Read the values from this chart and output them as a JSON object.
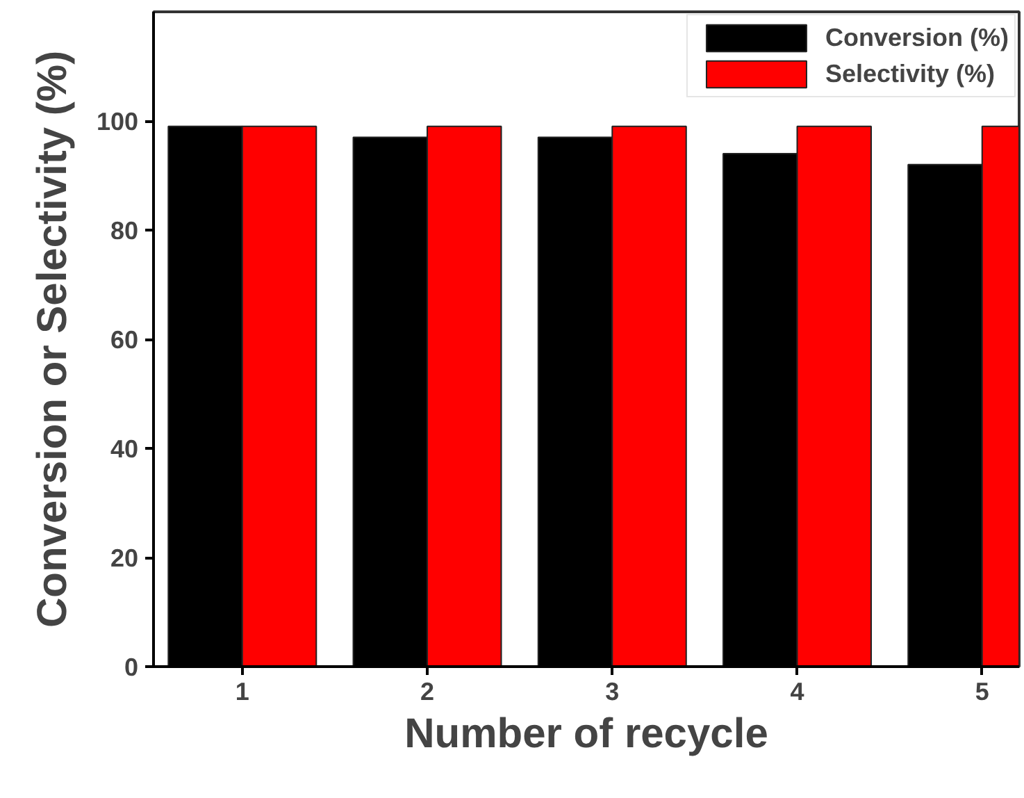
{
  "chart_data": {
    "type": "bar",
    "xlabel": "Number of recycle",
    "ylabel": "Conversion or Selectivity (%)",
    "x": [
      1,
      2,
      3,
      4,
      5
    ],
    "xlim": [
      0.52,
      5.2
    ],
    "xticks": [
      1,
      2,
      3,
      4,
      5
    ],
    "ylim": [
      0,
      120
    ],
    "yticks": [
      0,
      20,
      40,
      60,
      80,
      100
    ],
    "series": [
      {
        "name": "Conversion (%)",
        "color": "#000000",
        "values": [
          99,
          97,
          97,
          94,
          92
        ]
      },
      {
        "name": "Selectivity (%)",
        "color": "#ff0000",
        "values": [
          99,
          99,
          99,
          99,
          99
        ]
      }
    ],
    "legend": "top right",
    "grid": false
  }
}
